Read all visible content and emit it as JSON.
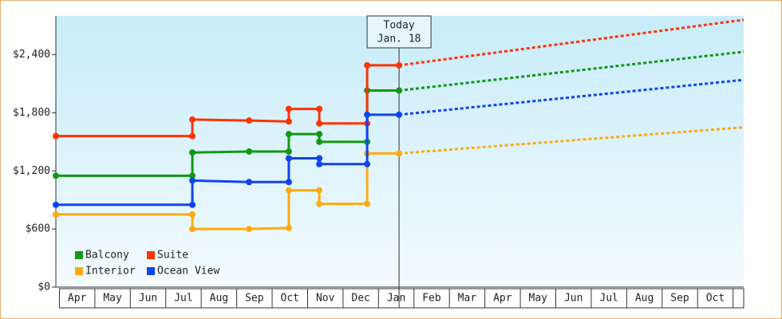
{
  "chart_data": {
    "type": "step-line",
    "categories": [
      "Apr",
      "May",
      "Jun",
      "Jul",
      "Aug",
      "Sep",
      "Oct",
      "Nov",
      "Dec",
      "Jan",
      "Feb",
      "Mar",
      "Apr",
      "May",
      "Jun",
      "Jul",
      "Aug",
      "Sep",
      "Oct"
    ],
    "xlim": [
      -0.1,
      19.3
    ],
    "ylim": [
      0,
      2800
    ],
    "yticks": [
      {
        "value": 0,
        "label": "$0"
      },
      {
        "value": 600,
        "label": "$600"
      },
      {
        "value": 1200,
        "label": "$1,200"
      },
      {
        "value": 1800,
        "label": "$1,800"
      },
      {
        "value": 2400,
        "label": "$2,400"
      }
    ],
    "annotation": {
      "x": 9.58,
      "lines": [
        "Today",
        "Jan. 18"
      ]
    },
    "legend": "bottom-left",
    "series": [
      {
        "name": "Balcony",
        "color": "#119911",
        "x": [
          -0.1,
          3.75,
          3.75,
          5.35,
          6.47,
          6.47,
          7.33,
          7.33,
          8.68,
          8.68,
          9.58
        ],
        "values": [
          1150,
          1150,
          1390,
          1400,
          1400,
          1580,
          1580,
          1500,
          1500,
          2030,
          2030
        ],
        "forecast_x": [
          9.58,
          19.3
        ],
        "forecast_values": [
          2030,
          2430
        ]
      },
      {
        "name": "Suite",
        "color": "#ff3300",
        "x": [
          -0.1,
          3.75,
          3.75,
          5.35,
          6.47,
          6.47,
          7.33,
          7.33,
          8.68,
          8.68,
          9.58
        ],
        "values": [
          1560,
          1560,
          1730,
          1720,
          1710,
          1840,
          1840,
          1690,
          1690,
          2290,
          2290
        ],
        "forecast_x": [
          9.58,
          19.3
        ],
        "forecast_values": [
          2290,
          2760
        ]
      },
      {
        "name": "Interior",
        "color": "#ffaa11",
        "x": [
          -0.1,
          3.75,
          3.75,
          5.35,
          6.47,
          6.47,
          7.33,
          7.33,
          8.68,
          8.68,
          9.58
        ],
        "values": [
          750,
          750,
          600,
          600,
          610,
          1000,
          1000,
          860,
          860,
          1380,
          1380
        ],
        "forecast_x": [
          9.58,
          19.3
        ],
        "forecast_values": [
          1380,
          1650
        ]
      },
      {
        "name": "Ocean View",
        "color": "#1144ee",
        "x": [
          -0.1,
          3.75,
          3.75,
          5.35,
          6.47,
          6.47,
          7.33,
          7.33,
          8.68,
          8.68,
          9.58
        ],
        "values": [
          850,
          850,
          1100,
          1085,
          1085,
          1330,
          1330,
          1270,
          1270,
          1780,
          1780
        ],
        "forecast_x": [
          9.58,
          19.3
        ],
        "forecast_values": [
          1780,
          2140
        ]
      }
    ]
  }
}
